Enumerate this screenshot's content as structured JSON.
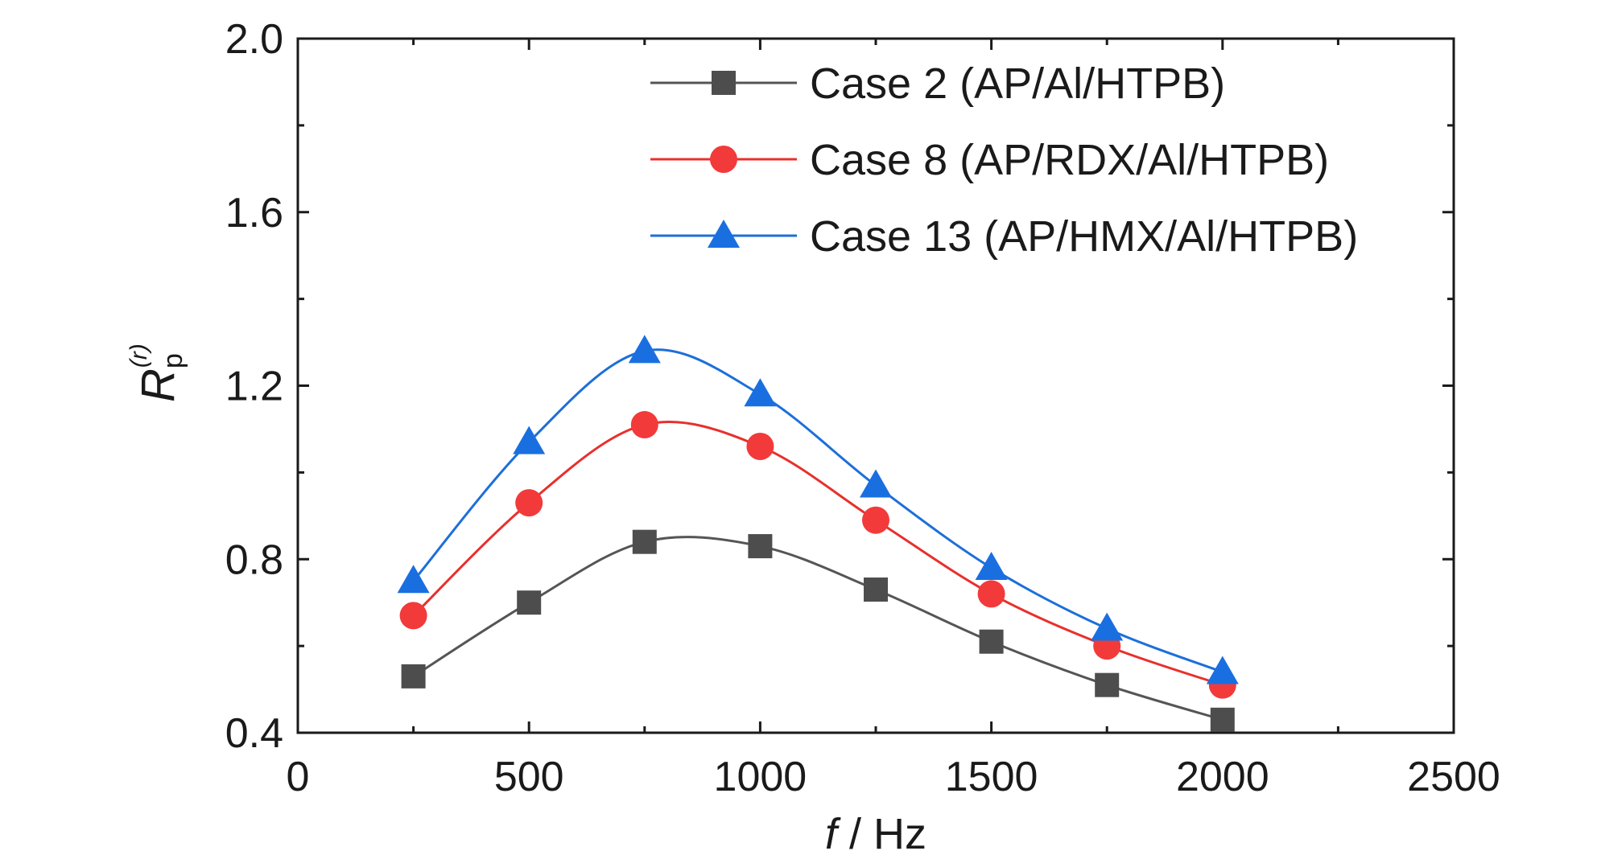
{
  "chart_data": {
    "type": "line",
    "xlabel_var": "f",
    "xlabel_unit": " / Hz",
    "ylabel": {
      "main": "R",
      "sub": "p",
      "sup": "(r)"
    },
    "xlim": [
      0,
      2500
    ],
    "ylim": [
      0.4,
      2.0
    ],
    "x_ticks": [
      0,
      500,
      1000,
      1500,
      2000,
      2500
    ],
    "x_tick_labels": [
      "0",
      "500",
      "1000",
      "1500",
      "2000",
      "2500"
    ],
    "y_ticks": [
      0.4,
      0.8,
      1.2,
      1.6,
      2.0
    ],
    "y_tick_labels": [
      "0.4",
      "0.8",
      "1.2",
      "1.6",
      "2.0"
    ],
    "legend_position": "top-right",
    "x": [
      250,
      500,
      750,
      1000,
      1250,
      1500,
      1750,
      2000
    ],
    "series": [
      {
        "name": "Case 2 (AP/Al/HTPB)",
        "marker": "square",
        "color": "#4d4d4d",
        "line_color": "#555555",
        "values": [
          0.53,
          0.7,
          0.84,
          0.83,
          0.73,
          0.61,
          0.51,
          0.43
        ]
      },
      {
        "name": "Case 8 (AP/RDX/Al/HTPB)",
        "marker": "circle",
        "color": "#f23a3a",
        "line_color": "#e8302c",
        "values": [
          0.67,
          0.93,
          1.11,
          1.06,
          0.89,
          0.72,
          0.6,
          0.51
        ]
      },
      {
        "name": "Case 13 (AP/HMX/Al/HTPB)",
        "marker": "triangle",
        "color": "#1a6fe0",
        "line_color": "#1c6fd9",
        "values": [
          0.75,
          1.07,
          1.28,
          1.18,
          0.97,
          0.78,
          0.64,
          0.54
        ]
      }
    ]
  }
}
